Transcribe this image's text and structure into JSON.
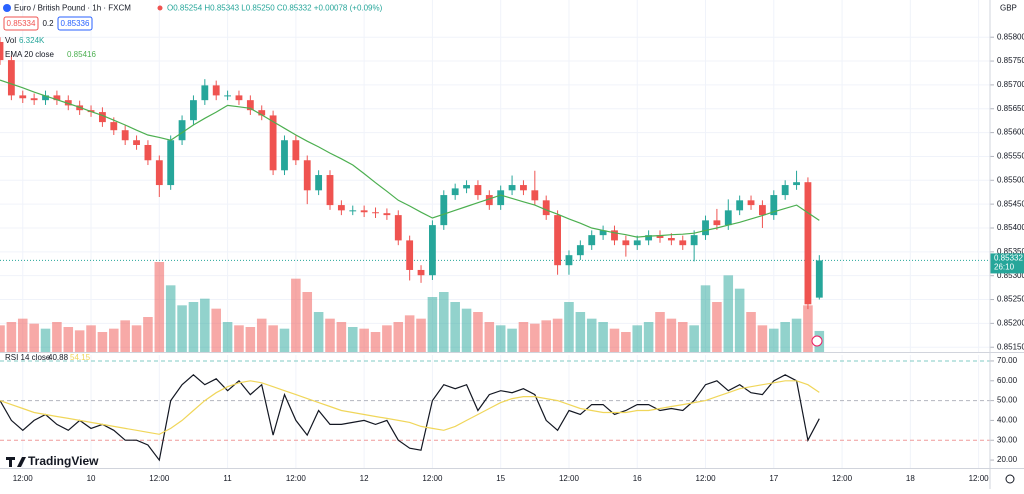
{
  "header": {
    "symbol": "Euro / British Pound · 1h · FXCM",
    "ohlc": "O0.85254 H0.85343 L0.85250 C0.85332 +0.00078 (+0.09%)",
    "bid": "0.85334",
    "spread": "0.2",
    "ask": "0.85336",
    "volume_value": "6.324K",
    "currency": "GBP",
    "countdown": "26:10",
    "logo": "TradingView"
  },
  "chart_data": {
    "type": "candlestick",
    "up_color": "#26a69a",
    "down_color": "#ef5350",
    "grid": true,
    "xlim": [
      0,
      174
    ],
    "xticks": [
      {
        "value": 4,
        "label": "12:00"
      },
      {
        "value": 16,
        "label": "10"
      },
      {
        "value": 28,
        "label": "12:00"
      },
      {
        "value": 40,
        "label": "11"
      },
      {
        "value": 52,
        "label": "12:00"
      },
      {
        "value": 64,
        "label": "12"
      },
      {
        "value": 76,
        "label": "12:00"
      },
      {
        "value": 88,
        "label": "15"
      },
      {
        "value": 100,
        "label": "12:00"
      },
      {
        "value": 112,
        "label": "16"
      },
      {
        "value": 124,
        "label": "12:00"
      },
      {
        "value": 136,
        "label": "17"
      },
      {
        "value": 148,
        "label": "12:00"
      },
      {
        "value": 160,
        "label": "18"
      },
      {
        "value": 172,
        "label": "12:00"
      }
    ],
    "ylim": [
      0.8514,
      0.85878
    ],
    "yticks": [
      {
        "value": 0.8515,
        "label": "0.85150"
      },
      {
        "value": 0.852,
        "label": "0.85200"
      },
      {
        "value": 0.8525,
        "label": "0.85250"
      },
      {
        "value": 0.853,
        "label": "0.85300"
      },
      {
        "value": 0.8535,
        "label": "0.85350"
      },
      {
        "value": 0.854,
        "label": "0.85400"
      },
      {
        "value": 0.8545,
        "label": "0.85450"
      },
      {
        "value": 0.855,
        "label": "0.85500"
      },
      {
        "value": 0.8555,
        "label": "0.85550"
      },
      {
        "value": 0.856,
        "label": "0.85600"
      },
      {
        "value": 0.8565,
        "label": "0.85650"
      },
      {
        "value": 0.857,
        "label": "0.85700"
      },
      {
        "value": 0.8575,
        "label": "0.85750"
      },
      {
        "value": 0.858,
        "label": "0.85800"
      }
    ],
    "x": [
      0,
      2,
      4,
      6,
      8,
      10,
      12,
      14,
      16,
      18,
      20,
      22,
      24,
      26,
      28,
      30,
      32,
      34,
      36,
      38,
      40,
      42,
      44,
      46,
      48,
      50,
      52,
      54,
      56,
      58,
      60,
      62,
      64,
      66,
      68,
      70,
      72,
      74,
      76,
      78,
      80,
      82,
      84,
      86,
      88,
      90,
      92,
      94,
      96,
      98,
      100,
      102,
      104,
      106,
      108,
      110,
      112,
      114,
      116,
      118,
      120,
      122,
      124,
      126,
      128,
      130,
      132,
      134,
      136,
      138,
      140,
      142,
      144
    ],
    "open": [
      0.8579,
      0.85752,
      0.85678,
      0.85672,
      0.85668,
      0.85678,
      0.85668,
      0.85657,
      0.85647,
      0.85643,
      0.85622,
      0.85605,
      0.85584,
      0.85574,
      0.85542,
      0.8549,
      0.85584,
      0.85626,
      0.85668,
      0.85699,
      0.85678,
      0.85678,
      0.85668,
      0.85647,
      0.85636,
      0.85521,
      0.85584,
      0.85542,
      0.85479,
      0.85511,
      0.85448,
      0.85437,
      0.85437,
      0.85433,
      0.85431,
      0.85427,
      0.85374,
      0.85312,
      0.85301,
      0.85406,
      0.85469,
      0.85483,
      0.8549,
      0.85469,
      0.85448,
      0.85479,
      0.8549,
      0.85479,
      0.85458,
      0.85427,
      0.85322,
      0.85343,
      0.85364,
      0.85385,
      0.85395,
      0.85374,
      0.85364,
      0.85374,
      0.85385,
      0.85379,
      0.85374,
      0.85364,
      0.85385,
      0.85416,
      0.85406,
      0.85437,
      0.85458,
      0.85448,
      0.85427,
      0.85469,
      0.8549,
      0.85496,
      0.85254
    ],
    "high": [
      0.858,
      0.85762,
      0.85688,
      0.85682,
      0.85688,
      0.85688,
      0.85678,
      0.85667,
      0.85657,
      0.85653,
      0.85632,
      0.85615,
      0.85594,
      0.85584,
      0.85552,
      0.85594,
      0.85636,
      0.85678,
      0.85712,
      0.85709,
      0.85688,
      0.85688,
      0.85678,
      0.85657,
      0.85646,
      0.85594,
      0.85594,
      0.85552,
      0.85521,
      0.85521,
      0.85458,
      0.85447,
      0.85447,
      0.85443,
      0.85441,
      0.85437,
      0.85384,
      0.85322,
      0.85416,
      0.85479,
      0.85493,
      0.855,
      0.855,
      0.85479,
      0.85489,
      0.8551,
      0.855,
      0.8552,
      0.85468,
      0.85437,
      0.85353,
      0.85374,
      0.85395,
      0.85405,
      0.85405,
      0.85384,
      0.85384,
      0.85395,
      0.85395,
      0.85389,
      0.85384,
      0.85395,
      0.85426,
      0.8544,
      0.8546,
      0.85468,
      0.85468,
      0.85458,
      0.85479,
      0.855,
      0.8552,
      0.85506,
      0.85343
    ],
    "low": [
      0.85742,
      0.85668,
      0.85662,
      0.85658,
      0.85658,
      0.85658,
      0.85647,
      0.85637,
      0.85633,
      0.85612,
      0.85595,
      0.85574,
      0.85564,
      0.85532,
      0.85465,
      0.8548,
      0.85574,
      0.85616,
      0.85658,
      0.85668,
      0.85668,
      0.85658,
      0.85637,
      0.85626,
      0.85511,
      0.85511,
      0.85532,
      0.8545,
      0.85469,
      0.85438,
      0.85427,
      0.85427,
      0.85423,
      0.85421,
      0.85417,
      0.85364,
      0.8529,
      0.85285,
      0.85291,
      0.85396,
      0.85459,
      0.85473,
      0.85459,
      0.85438,
      0.85438,
      0.85469,
      0.85469,
      0.85448,
      0.85417,
      0.85302,
      0.85302,
      0.85333,
      0.85354,
      0.85375,
      0.85364,
      0.8534,
      0.85354,
      0.85364,
      0.85369,
      0.85364,
      0.85354,
      0.8533,
      0.85375,
      0.85396,
      0.85396,
      0.85427,
      0.85438,
      0.854,
      0.85417,
      0.85459,
      0.8548,
      0.8523,
      0.8525
    ],
    "close": [
      0.85752,
      0.85678,
      0.85672,
      0.85668,
      0.85678,
      0.85668,
      0.85657,
      0.85647,
      0.85643,
      0.85622,
      0.85605,
      0.85584,
      0.85574,
      0.85542,
      0.8549,
      0.85584,
      0.85626,
      0.85668,
      0.85699,
      0.85678,
      0.85678,
      0.85668,
      0.85647,
      0.85636,
      0.85521,
      0.85584,
      0.85542,
      0.85479,
      0.85511,
      0.85448,
      0.85437,
      0.85437,
      0.85433,
      0.85431,
      0.85427,
      0.85374,
      0.85312,
      0.85301,
      0.85406,
      0.85469,
      0.85483,
      0.8549,
      0.85469,
      0.85448,
      0.85479,
      0.8549,
      0.85479,
      0.85458,
      0.85427,
      0.85322,
      0.85343,
      0.85364,
      0.85385,
      0.85395,
      0.85374,
      0.85364,
      0.85374,
      0.85385,
      0.85379,
      0.85374,
      0.85364,
      0.85385,
      0.85416,
      0.85406,
      0.85437,
      0.85458,
      0.85448,
      0.85427,
      0.85469,
      0.8549,
      0.85496,
      0.8524,
      0.85332
    ],
    "volume_name": "Vol",
    "vlim": [
      0,
      30000
    ],
    "volume": [
      8000,
      9000,
      10000,
      8500,
      7000,
      9000,
      7500,
      6500,
      8000,
      6000,
      7000,
      9500,
      8000,
      10500,
      27000,
      20000,
      14000,
      15000,
      16000,
      13000,
      9000,
      8000,
      7500,
      10000,
      8000,
      7000,
      22000,
      18000,
      12000,
      10000,
      9000,
      7500,
      7000,
      6000,
      8000,
      9000,
      11000,
      10000,
      16500,
      18000,
      15000,
      13000,
      12000,
      9000,
      8000,
      7000,
      9000,
      8500,
      9500,
      10000,
      15000,
      12000,
      10000,
      9000,
      7000,
      6000,
      8000,
      9000,
      12000,
      10000,
      9000,
      8000,
      20000,
      15000,
      23000,
      19000,
      12000,
      8000,
      7000,
      9000,
      10000,
      14000,
      6324
    ],
    "series": [
      {
        "name": "EMA 20 close",
        "color": "#4caf50",
        "values": [
          0.8571,
          0.85702,
          0.85694,
          0.85685,
          0.85677,
          0.85669,
          0.85661,
          0.85653,
          0.85644,
          0.85636,
          0.85626,
          0.85616,
          0.85605,
          0.85595,
          0.8559,
          0.85584,
          0.856,
          0.85616,
          0.8563,
          0.85643,
          0.85657,
          0.85654,
          0.85651,
          0.85637,
          0.85623,
          0.85609,
          0.85595,
          0.85582,
          0.8557,
          0.85557,
          0.85545,
          0.85532,
          0.85514,
          0.85495,
          0.85477,
          0.85458,
          0.85446,
          0.85433,
          0.85421,
          0.85429,
          0.85437,
          0.85445,
          0.85453,
          0.85461,
          0.85469,
          0.85462,
          0.85455,
          0.85448,
          0.85438,
          0.85429,
          0.85419,
          0.8541,
          0.854,
          0.85395,
          0.8539,
          0.85386,
          0.85381,
          0.85383,
          0.85384,
          0.85386,
          0.85387,
          0.85389,
          0.85395,
          0.854,
          0.85406,
          0.85412,
          0.85419,
          0.85426,
          0.85434,
          0.85441,
          0.85448,
          0.85432,
          0.85416
        ]
      }
    ],
    "rsi": {
      "type": "line",
      "ylim": [
        16,
        73
      ],
      "yticks": [
        {
          "value": 20,
          "label": "20.00"
        },
        {
          "value": 30,
          "label": "30.00"
        },
        {
          "value": 40,
          "label": "40.00"
        },
        {
          "value": 50,
          "label": "50.00"
        },
        {
          "value": 60,
          "label": "60.00"
        },
        {
          "value": 70,
          "label": "70.00"
        }
      ],
      "levels": [
        70,
        50,
        30
      ],
      "level_colors": [
        "#80cbc4",
        "#b2b5be",
        "#ef9a9a"
      ],
      "series": [
        {
          "name": "RSI 14 close",
          "color": "#131722",
          "values": [
            50,
            40,
            35,
            40,
            43,
            38,
            35,
            40,
            36,
            38,
            35,
            30,
            30,
            27.6,
            20,
            50,
            58,
            63,
            58,
            61,
            55,
            60,
            53,
            58,
            32.6,
            53,
            40,
            32.6,
            45,
            38,
            38,
            39,
            40,
            38,
            40,
            30,
            26,
            25,
            50,
            58,
            56,
            58,
            45,
            53,
            55,
            54,
            56,
            53,
            40,
            35,
            45,
            43,
            48,
            48,
            43,
            45,
            48,
            48,
            45,
            46,
            45,
            50,
            58,
            60,
            55,
            58,
            54,
            53,
            60,
            63,
            60,
            30,
            40.88
          ]
        },
        {
          "color": "#f0d65a",
          "values": [
            50,
            48,
            46,
            44,
            43,
            42,
            41,
            40,
            39,
            38,
            37,
            36,
            35,
            34,
            33,
            36,
            40,
            45,
            50,
            54,
            57,
            59,
            60,
            59,
            57,
            55,
            53,
            51,
            49,
            47,
            45,
            44,
            43,
            42,
            41,
            40,
            39,
            37,
            36,
            35,
            37,
            40,
            43,
            46,
            49,
            51,
            52,
            52,
            51,
            50,
            48,
            46,
            45,
            44,
            44,
            44,
            45,
            45,
            46,
            47,
            48,
            49,
            50,
            52,
            54,
            56,
            57,
            58,
            59,
            60,
            60,
            58,
            54.15
          ]
        }
      ]
    }
  }
}
